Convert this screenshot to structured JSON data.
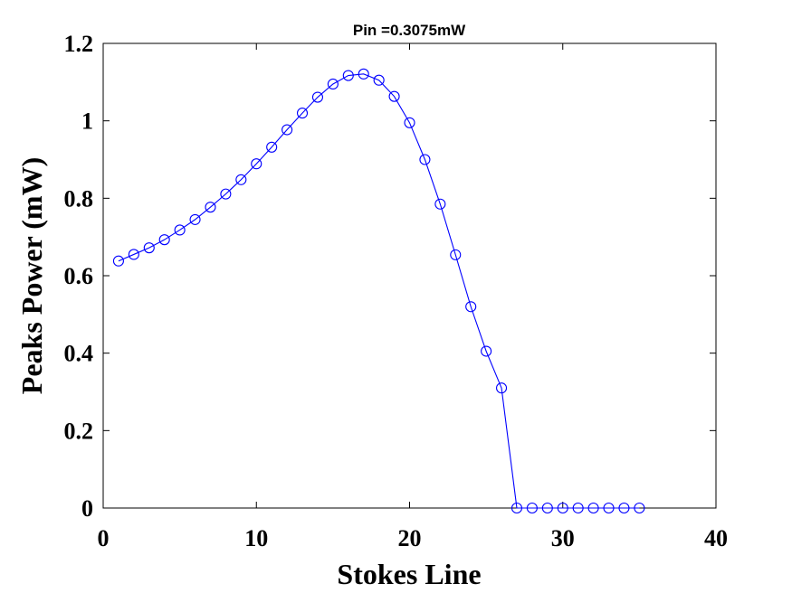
{
  "chart_data": {
    "type": "line",
    "title": "Pin =0.3075mW",
    "xlabel": "Stokes Line",
    "ylabel": "Peaks Power (mW)",
    "xlim": [
      0,
      40
    ],
    "ylim": [
      0,
      1.2
    ],
    "grid": false,
    "x_ticks": [
      0,
      10,
      20,
      30,
      40
    ],
    "x_tick_labels": [
      "0",
      "10",
      "20",
      "30",
      "40"
    ],
    "y_ticks": [
      0,
      0.2,
      0.4,
      0.6,
      0.8,
      1.0,
      1.2
    ],
    "y_tick_labels": [
      "0",
      "0.2",
      "0.4",
      "0.6",
      "0.8",
      "1",
      "1.2"
    ],
    "series": [
      {
        "name": "Peaks Power",
        "color": "#0000ff",
        "marker": "circle",
        "x": [
          1,
          2,
          3,
          4,
          5,
          6,
          7,
          8,
          9,
          10,
          11,
          12,
          13,
          14,
          15,
          16,
          17,
          18,
          19,
          20,
          21,
          22,
          23,
          24,
          25,
          26,
          27,
          28,
          29,
          30,
          31,
          32,
          33,
          34,
          35
        ],
        "y": [
          0.638,
          0.655,
          0.672,
          0.693,
          0.718,
          0.745,
          0.777,
          0.811,
          0.848,
          0.889,
          0.932,
          0.977,
          1.02,
          1.061,
          1.095,
          1.117,
          1.121,
          1.105,
          1.063,
          0.995,
          0.9,
          0.785,
          0.654,
          0.52,
          0.405,
          0.31,
          0,
          0,
          0,
          0,
          0,
          0,
          0,
          0,
          0
        ]
      }
    ]
  }
}
